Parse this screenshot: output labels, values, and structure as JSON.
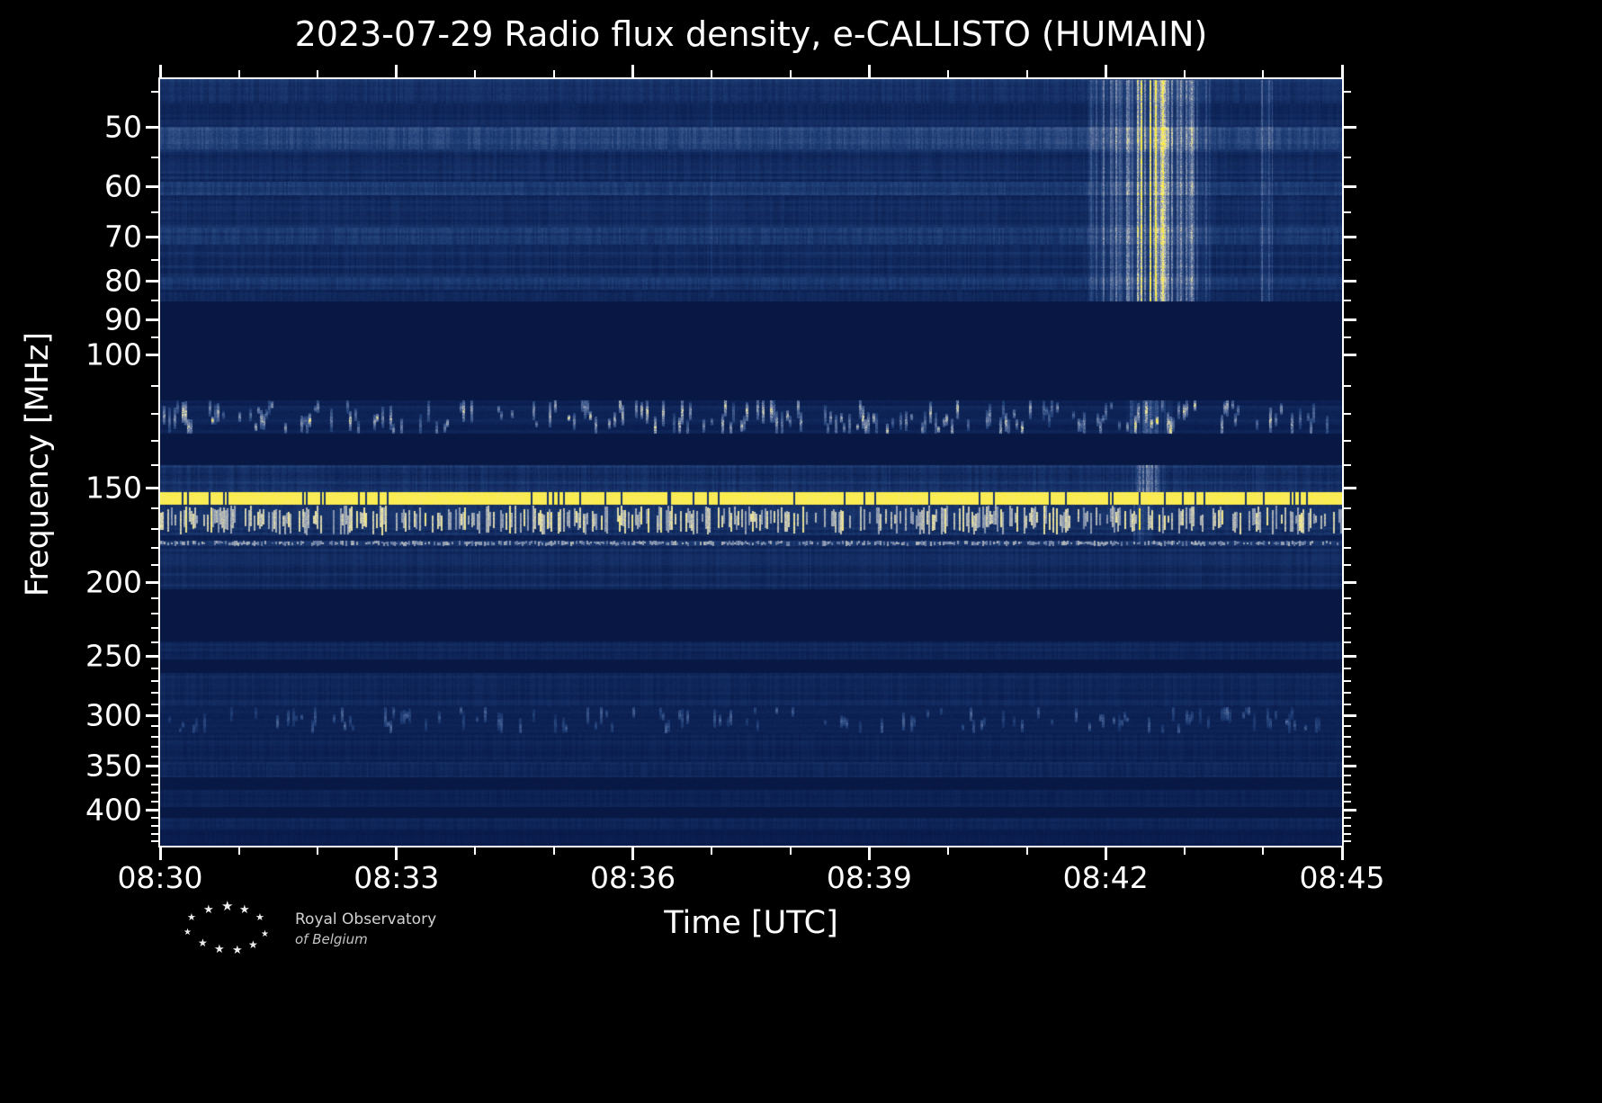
{
  "title": "2023-07-29 Radio flux density, e-CALLISTO (HUMAIN)",
  "axes": {
    "xlabel": "Time [UTC]",
    "ylabel": "Frequency [MHz]"
  },
  "logo": {
    "line1": "Royal Observatory",
    "line2": "of Belgium",
    "icon": "star-constellation-icon",
    "star_glyph": "★"
  },
  "chart_data": {
    "type": "heatmap",
    "title": "2023-07-29 Radio flux density, e-CALLISTO (HUMAIN)",
    "xlabel": "Time [UTC]",
    "ylabel": "Frequency [MHz]",
    "x_start_utc": "08:30",
    "x_end_utc": "08:45",
    "x_tick_labels": [
      "08:30",
      "08:33",
      "08:36",
      "08:39",
      "08:42",
      "08:45"
    ],
    "x_major_step_min": 3,
    "x_minor_step_min": 1,
    "x_span_min": 15,
    "y_scale": "log",
    "y_tick_values_mhz": [
      50,
      60,
      70,
      80,
      90,
      100,
      150,
      200,
      250,
      300,
      350,
      400
    ],
    "freq_range_mhz": [
      43.3,
      446
    ],
    "background": "#000000",
    "plot_background": "#0a1c4a",
    "text_color": "#ffffff",
    "colormap_stops": [
      [
        0.0,
        "#061233"
      ],
      [
        0.1,
        "#0a1d4e"
      ],
      [
        0.3,
        "#1e3e77"
      ],
      [
        0.55,
        "#5f74a0"
      ],
      [
        0.72,
        "#a3abb8"
      ],
      [
        0.85,
        "#ece5a9"
      ],
      [
        1.0,
        "#ffef3a"
      ]
    ],
    "bands": [
      {
        "f1": 43.3,
        "f2": 46.5,
        "base": 0.11,
        "amp": 0.24,
        "type": "tex"
      },
      {
        "f1": 46.5,
        "f2": 50.0,
        "base": 0.09,
        "amp": 0.16,
        "type": "tex"
      },
      {
        "f1": 50.0,
        "f2": 53.5,
        "base": 0.15,
        "amp": 0.34,
        "type": "tex"
      },
      {
        "f1": 53.5,
        "f2": 59.0,
        "base": 0.1,
        "amp": 0.2,
        "type": "tex"
      },
      {
        "f1": 59.0,
        "f2": 61.5,
        "base": 0.13,
        "amp": 0.26,
        "type": "tex"
      },
      {
        "f1": 61.5,
        "f2": 68.0,
        "base": 0.1,
        "amp": 0.19,
        "type": "tex"
      },
      {
        "f1": 68.0,
        "f2": 71.5,
        "base": 0.14,
        "amp": 0.28,
        "type": "tex"
      },
      {
        "f1": 71.5,
        "f2": 79.0,
        "base": 0.1,
        "amp": 0.19,
        "type": "tex"
      },
      {
        "f1": 79.0,
        "f2": 82.0,
        "base": 0.12,
        "amp": 0.24,
        "type": "tex"
      },
      {
        "f1": 82.0,
        "f2": 85.0,
        "base": 0.09,
        "amp": 0.16,
        "type": "tex"
      },
      {
        "f1": 85.0,
        "f2": 115.0,
        "base": 0.06,
        "amp": 0.02,
        "type": "flat"
      },
      {
        "f1": 115.0,
        "f2": 127.0,
        "base": 0.09,
        "amp": 0.22,
        "type": "speckle",
        "density": 0.42,
        "gain": 0.85
      },
      {
        "f1": 127.0,
        "f2": 140.0,
        "base": 0.06,
        "amp": 0.02,
        "type": "flat"
      },
      {
        "f1": 140.0,
        "f2": 152.0,
        "base": 0.1,
        "amp": 0.26,
        "type": "tex"
      },
      {
        "f1": 152.0,
        "f2": 158.0,
        "base": 0.93,
        "amp": 0.07,
        "type": "bright",
        "notch": 0.06
      },
      {
        "f1": 158.0,
        "f2": 173.0,
        "base": 0.1,
        "amp": 0.22,
        "type": "rfi",
        "density": 0.5,
        "gain": 0.95
      },
      {
        "f1": 173.0,
        "f2": 176.0,
        "base": 0.08,
        "amp": 0.1,
        "type": "tex"
      },
      {
        "f1": 176.0,
        "f2": 179.0,
        "base": 0.12,
        "amp": 0.25,
        "type": "rfi",
        "density": 0.65,
        "gain": 0.8
      },
      {
        "f1": 179.0,
        "f2": 204.0,
        "base": 0.1,
        "amp": 0.18,
        "type": "tex"
      },
      {
        "f1": 204.0,
        "f2": 239.0,
        "base": 0.06,
        "amp": 0.02,
        "type": "flat"
      },
      {
        "f1": 239.0,
        "f2": 253.0,
        "base": 0.09,
        "amp": 0.14,
        "type": "tex"
      },
      {
        "f1": 253.0,
        "f2": 263.0,
        "base": 0.06,
        "amp": 0.03,
        "type": "flat"
      },
      {
        "f1": 263.0,
        "f2": 292.0,
        "base": 0.09,
        "amp": 0.15,
        "type": "tex"
      },
      {
        "f1": 292.0,
        "f2": 316.0,
        "base": 0.1,
        "amp": 0.2,
        "type": "speckle",
        "density": 0.25,
        "gain": 0.45
      },
      {
        "f1": 316.0,
        "f2": 345.0,
        "base": 0.08,
        "amp": 0.13,
        "type": "tex"
      },
      {
        "f1": 345.0,
        "f2": 362.0,
        "base": 0.1,
        "amp": 0.17,
        "type": "tex"
      },
      {
        "f1": 362.0,
        "f2": 376.0,
        "base": 0.06,
        "amp": 0.04,
        "type": "flat"
      },
      {
        "f1": 376.0,
        "f2": 396.0,
        "base": 0.08,
        "amp": 0.12,
        "type": "tex"
      },
      {
        "f1": 396.0,
        "f2": 409.0,
        "base": 0.06,
        "amp": 0.04,
        "type": "flat"
      },
      {
        "f1": 409.0,
        "f2": 424.0,
        "base": 0.09,
        "amp": 0.13,
        "type": "tex"
      },
      {
        "f1": 424.0,
        "f2": 446.0,
        "base": 0.07,
        "amp": 0.07,
        "type": "tex"
      }
    ],
    "features": [
      {
        "t1": 11.75,
        "t2": 13.35,
        "f1": 43.3,
        "f2": 85.0,
        "amp": 0.95,
        "peak": 12.55
      },
      {
        "t1": 13.95,
        "t2": 14.12,
        "f1": 43.3,
        "f2": 85.0,
        "amp": 0.75,
        "peak": 14.03
      },
      {
        "t1": 12.25,
        "t2": 12.85,
        "f1": 115.0,
        "f2": 127.0,
        "amp": 0.55,
        "peak": 12.5
      },
      {
        "t1": 12.3,
        "t2": 12.75,
        "f1": 140.0,
        "f2": 152.0,
        "amp": 0.5,
        "peak": 12.5
      },
      {
        "t1": 12.3,
        "t2": 12.6,
        "f1": 158.0,
        "f2": 176.0,
        "amp": 0.3,
        "peak": 12.45
      },
      {
        "t1": 6.95,
        "t2": 7.05,
        "f1": 43.3,
        "f2": 84.0,
        "amp": 0.22,
        "peak": 7.0
      }
    ]
  }
}
